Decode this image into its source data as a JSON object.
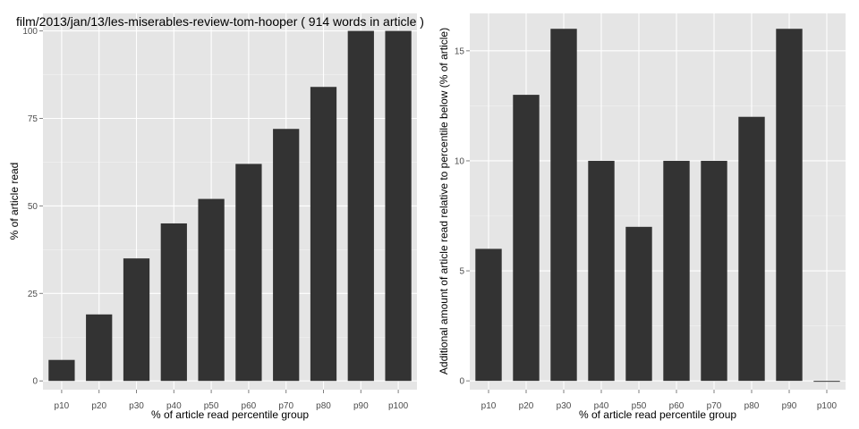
{
  "chart_data": [
    {
      "type": "bar",
      "title": "film/2013/jan/13/les-miserables-review-tom-hooper ( 914 words in article )",
      "categories": [
        "p10",
        "p20",
        "p30",
        "p40",
        "p50",
        "p60",
        "p70",
        "p80",
        "p90",
        "p100"
      ],
      "values": [
        6,
        19,
        35,
        45,
        52,
        62,
        72,
        84,
        100,
        100
      ],
      "xlabel": "% of article read percentile group",
      "ylabel": "% of article read",
      "yticks": [
        0,
        25,
        50,
        75,
        100
      ],
      "ylim": [
        -2.5,
        105
      ],
      "grid": true,
      "colors": {
        "panel": "#e5e5e5",
        "grid": "#ffffff",
        "bar": "#333333"
      }
    },
    {
      "type": "bar",
      "title": "",
      "categories": [
        "p10",
        "p20",
        "p30",
        "p40",
        "p50",
        "p60",
        "p70",
        "p80",
        "p90",
        "p100"
      ],
      "values": [
        6,
        13,
        16,
        10,
        7,
        10,
        10,
        12,
        16,
        0
      ],
      "xlabel": "% of article read percentile group",
      "ylabel": "Additional amount of article read relative to percentile below (% of article)",
      "yticks": [
        0,
        5,
        10,
        15
      ],
      "ylim": [
        -0.4,
        16.7
      ],
      "grid": true,
      "colors": {
        "panel": "#e5e5e5",
        "grid": "#ffffff",
        "bar": "#333333"
      }
    }
  ]
}
